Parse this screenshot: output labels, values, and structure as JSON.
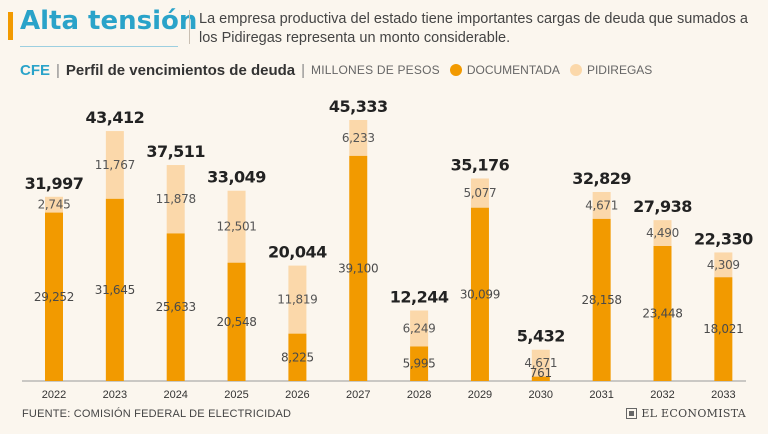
{
  "header": {
    "title": "Alta tensión",
    "subtitle": "La empresa productiva del estado tiene importantes cargas de deuda que sumados a los Pidiregas representa un monto considerable."
  },
  "legend": {
    "entity": "CFE",
    "divider": "|",
    "chart_title": "Perfil de vencimientos de deuda",
    "units": "MILLONES DE PESOS",
    "series1": "DOCUMENTADA",
    "series2": "PIDIREGAS"
  },
  "footer": {
    "source": "FUENTE: COMISIÓN FEDERAL DE ELECTRICIDAD",
    "brand": "EL ECONOMISTA"
  },
  "colors": {
    "documentada": "#f29a00",
    "pidiregas": "#fbd8aa",
    "accent": "#2aa3c9"
  },
  "chart_data": {
    "type": "bar",
    "stacked": true,
    "title": "Perfil de vencimientos de deuda",
    "units": "MILLONES DE PESOS",
    "categories": [
      "2022",
      "2023",
      "2024",
      "2025",
      "2026",
      "2027",
      "2028",
      "2029",
      "2030",
      "2031",
      "2032",
      "2033"
    ],
    "series": [
      {
        "name": "DOCUMENTADA",
        "values": [
          29252,
          31645,
          25633,
          20548,
          8225,
          39100,
          5995,
          30099,
          761,
          28158,
          23448,
          18021
        ]
      },
      {
        "name": "PIDIREGAS",
        "values": [
          2745,
          11767,
          11878,
          12501,
          11819,
          6233,
          6249,
          5077,
          4671,
          4671,
          4490,
          4309
        ]
      }
    ],
    "totals": [
      31997,
      43412,
      37511,
      33049,
      20044,
      45333,
      12244,
      35176,
      5432,
      32829,
      27938,
      22330
    ],
    "display": {
      "totals": [
        "31,997",
        "43,412",
        "37,511",
        "33,049",
        "20,044",
        "45,333",
        "12,244",
        "35,176",
        "5,432",
        "32,829",
        "27,938",
        "22,330"
      ],
      "documentada": [
        "29,252",
        "31,645",
        "25,633",
        "20,548",
        "8,225",
        "39,100",
        "5,995",
        "30,099",
        "761",
        "28,158",
        "23,448",
        "18,021"
      ],
      "pidiregas": [
        "2,745",
        "11,767",
        "11,878",
        "12,501",
        "11,819",
        "6,233",
        "6,249",
        "5,077",
        "4,671",
        "4,671",
        "4,490",
        "4,309"
      ]
    },
    "ylim": [
      0,
      45333
    ],
    "grid": false
  }
}
